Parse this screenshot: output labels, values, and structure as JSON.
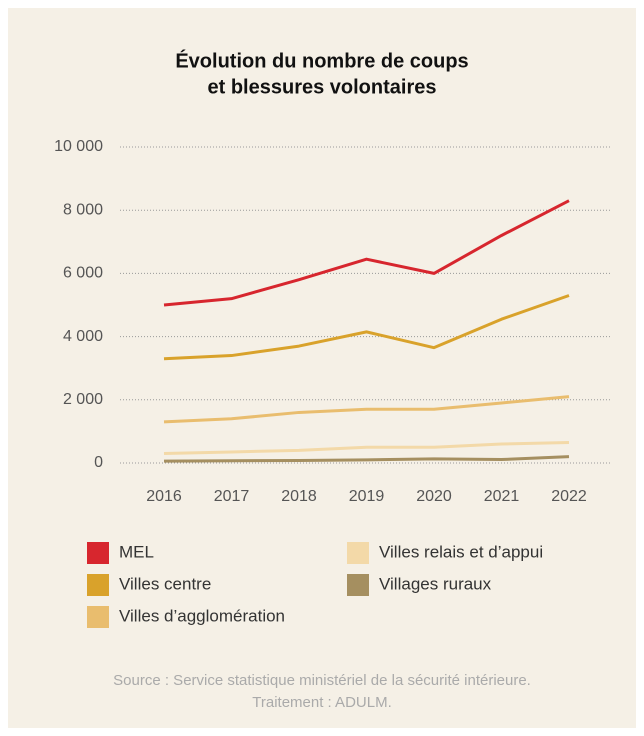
{
  "chart_data": {
    "type": "line",
    "title": [
      "Évolution du nombre de coups",
      "et blessures volontaires"
    ],
    "categories": [
      "2016",
      "2017",
      "2018",
      "2019",
      "2020",
      "2021",
      "2022"
    ],
    "series": [
      {
        "name": "MEL",
        "color": "#d7262e",
        "values": [
          5000,
          5200,
          5800,
          6450,
          6000,
          7200,
          8300
        ]
      },
      {
        "name": "Villes centre",
        "color": "#d9a22b",
        "values": [
          3300,
          3400,
          3700,
          4150,
          3650,
          4550,
          5300
        ]
      },
      {
        "name": "Villes d’agglomération",
        "color": "#e9bd6e",
        "values": [
          1300,
          1400,
          1600,
          1700,
          1700,
          1900,
          2100
        ]
      },
      {
        "name": "Villes relais et d’appui",
        "color": "#f3d9a8",
        "values": [
          300,
          350,
          400,
          500,
          500,
          600,
          650
        ]
      },
      {
        "name": "Villages ruraux",
        "color": "#a58f60",
        "values": [
          60,
          70,
          80,
          100,
          130,
          110,
          200
        ]
      }
    ],
    "ylim": [
      0,
      10000
    ],
    "yticks": [
      0,
      {
        "value": 2000,
        "label": "2 000"
      },
      {
        "value": 4000,
        "label": "4 000"
      },
      {
        "value": 6000,
        "label": "6 000"
      },
      {
        "value": 8000,
        "label": "8 000"
      },
      {
        "value": 10000,
        "label": "10 000"
      }
    ],
    "grid": true,
    "notes": [
      "Source : Service statistique ministériel de la sécurité intérieure.",
      "Traitement : ADULM."
    ]
  }
}
